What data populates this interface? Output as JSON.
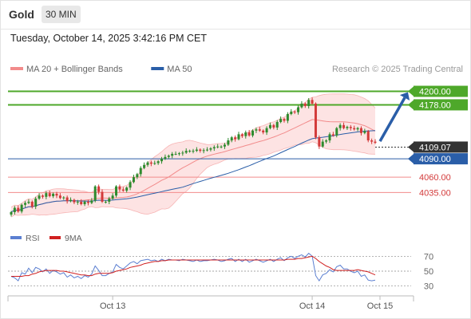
{
  "header": {
    "instrument": "Gold",
    "timeframe": "30 MIN"
  },
  "datetime": "Tuesday, October 14, 2025 3:42:16 PM CET",
  "legend": [
    {
      "label": "MA 20 + Bollinger Bands",
      "color": "#f28b8b"
    },
    {
      "label": "MA 50",
      "color": "#2a5ea8"
    }
  ],
  "credit": "Research © 2025 Trading Central",
  "colors": {
    "up": "#2e8b2e",
    "down": "#d33a3a",
    "band_fill": "#fde3e3",
    "resistance": "#4ea82a",
    "pivot": "#2a5ea8",
    "support": "#f28b8b",
    "current": "#333333",
    "arrow": "#2a5ea8"
  },
  "chart_data": [
    {
      "type": "candlestick",
      "title": "",
      "xlabel": "",
      "ylabel": "",
      "ylim": [
        3990,
        4215
      ],
      "x_ticks": [
        "Oct 13",
        "Oct 14",
        "Oct 15"
      ],
      "series": [
        {
          "name": "MA 20 + Bollinger Bands",
          "kind": "bands"
        },
        {
          "name": "MA 50",
          "kind": "line"
        }
      ],
      "closes": [
        4003,
        4010,
        4004,
        4015,
        4018,
        4020,
        4012,
        4025,
        4030,
        4028,
        4034,
        4029,
        4033,
        4030,
        4026,
        4027,
        4021,
        4023,
        4019,
        4020,
        4016,
        4020,
        4018,
        4022,
        4045,
        4036,
        4020,
        4020,
        4025,
        4030,
        4045,
        4040,
        4038,
        4043,
        4052,
        4060,
        4065,
        4075,
        4080,
        4084,
        4082,
        4083,
        4086,
        4090,
        4093,
        4095,
        4098,
        4098,
        4099,
        4100,
        4103,
        4103,
        4103,
        4105,
        4103,
        4104,
        4105,
        4107,
        4109,
        4110,
        4110,
        4113,
        4120,
        4125,
        4122,
        4130,
        4127,
        4133,
        4128,
        4136,
        4138,
        4136,
        4133,
        4140,
        4145,
        4141,
        4150,
        4155,
        4152,
        4163,
        4167,
        4166,
        4174,
        4180,
        4176,
        4186,
        4180,
        4125,
        4110,
        4118,
        4120,
        4130,
        4128,
        4140,
        4145,
        4140,
        4142,
        4140,
        4138,
        4140,
        4132,
        4135,
        4120,
        4118,
        4116
      ],
      "levels": [
        {
          "value": 4200.0,
          "label": "4200.00",
          "kind": "resistance"
        },
        {
          "value": 4178.0,
          "label": "4178.00",
          "kind": "resistance"
        },
        {
          "value": 4109.07,
          "label": "4109.07",
          "kind": "current"
        },
        {
          "value": 4090.0,
          "label": "4090.00",
          "kind": "pivot"
        },
        {
          "value": 4060.0,
          "label": "4060.00",
          "kind": "support"
        },
        {
          "value": 4035.0,
          "label": "4035.00",
          "kind": "support"
        }
      ]
    },
    {
      "type": "line",
      "title": "",
      "series": [
        {
          "name": "RSI",
          "color": "#5b7fd1"
        },
        {
          "name": "9MA",
          "color": "#d02020"
        }
      ],
      "y_ticks": [
        70,
        50,
        30
      ],
      "ylim": [
        20,
        80
      ],
      "rsi": [
        43,
        41,
        37,
        48,
        46,
        54,
        48,
        55,
        53,
        49,
        53,
        47,
        51,
        49,
        46,
        48,
        42,
        45,
        41,
        43,
        40,
        44,
        42,
        46,
        57,
        51,
        44,
        44,
        47,
        49,
        59,
        55,
        53,
        57,
        61,
        63,
        60,
        64,
        65,
        66,
        64,
        65,
        63,
        66,
        64,
        66,
        65,
        65,
        64,
        66,
        65,
        64,
        63,
        65,
        63,
        64,
        64,
        65,
        66,
        65,
        63,
        64,
        66,
        67,
        63,
        66,
        63,
        66,
        62,
        64,
        66,
        64,
        62,
        64,
        66,
        63,
        66,
        68,
        64,
        68,
        70,
        67,
        70,
        72,
        69,
        74,
        70,
        44,
        37,
        45,
        47,
        52,
        49,
        56,
        58,
        53,
        53,
        50,
        48,
        50,
        43,
        45,
        38,
        37,
        38
      ],
      "ma9": [
        43,
        43,
        43,
        43,
        44,
        44,
        46,
        47,
        49,
        50,
        51,
        51,
        51,
        51,
        50,
        50,
        49,
        48,
        47,
        46,
        45,
        45,
        44,
        44,
        46,
        47,
        47,
        47,
        47,
        48,
        50,
        51,
        52,
        53,
        55,
        56,
        57,
        58,
        60,
        61,
        62,
        63,
        63,
        64,
        64,
        65,
        65,
        65,
        65,
        65,
        65,
        65,
        65,
        65,
        65,
        65,
        65,
        65,
        65,
        65,
        65,
        65,
        65,
        65,
        65,
        65,
        65,
        65,
        65,
        65,
        65,
        65,
        65,
        65,
        65,
        65,
        65,
        65,
        65,
        66,
        66,
        66,
        67,
        67,
        68,
        69,
        70,
        67,
        63,
        60,
        57,
        55,
        52,
        51,
        51,
        51,
        51,
        51,
        51,
        52,
        51,
        50,
        49,
        47,
        45
      ]
    }
  ]
}
